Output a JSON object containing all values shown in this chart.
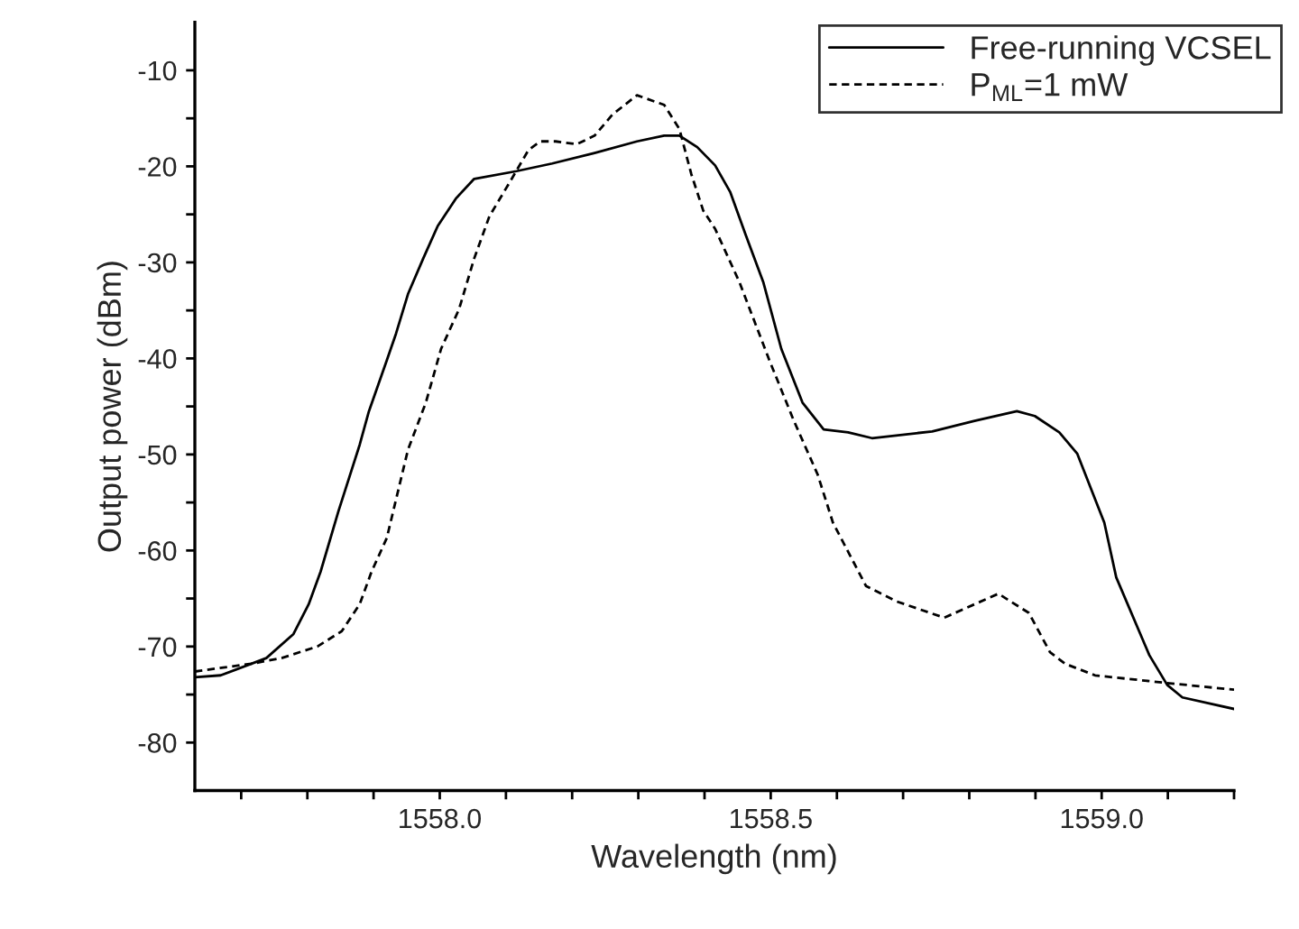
{
  "chart_data": {
    "type": "line",
    "xlabel": "Wavelength (nm)",
    "ylabel": "Output power (dBm)",
    "xlim": [
      1557.63,
      1559.2
    ],
    "ylim": [
      -85,
      -5
    ],
    "xticks": [
      {
        "value": 1557.7,
        "label": null
      },
      {
        "value": 1557.8,
        "label": null
      },
      {
        "value": 1557.9,
        "label": null
      },
      {
        "value": 1558.0,
        "label": "1558.0"
      },
      {
        "value": 1558.1,
        "label": null
      },
      {
        "value": 1558.2,
        "label": null
      },
      {
        "value": 1558.3,
        "label": null
      },
      {
        "value": 1558.4,
        "label": null
      },
      {
        "value": 1558.5,
        "label": "1558.5"
      },
      {
        "value": 1558.6,
        "label": null
      },
      {
        "value": 1558.7,
        "label": null
      },
      {
        "value": 1558.8,
        "label": null
      },
      {
        "value": 1558.9,
        "label": null
      },
      {
        "value": 1559.0,
        "label": "1559.0"
      },
      {
        "value": 1559.1,
        "label": null
      },
      {
        "value": 1559.2,
        "label": null
      }
    ],
    "yticks": [
      -80,
      {
        "value": -75,
        "label": null
      },
      -70,
      {
        "value": -65,
        "label": null
      },
      -60,
      {
        "value": -55,
        "label": null
      },
      -50,
      {
        "value": -45,
        "label": null
      },
      -40,
      {
        "value": -35,
        "label": null
      },
      -30,
      {
        "value": -25,
        "label": null
      },
      -20,
      {
        "value": -15,
        "label": null
      },
      -10
    ],
    "grid": false,
    "legend": "top right",
    "marker": "none",
    "series": [
      {
        "name": "Free-running VCSEL",
        "color": "#000000",
        "line_style": "solid",
        "x": [
          1557.63,
          1557.669,
          1557.738,
          1557.779,
          1557.802,
          1557.82,
          1557.847,
          1557.879,
          1557.893,
          1557.92,
          1557.934,
          1557.952,
          1557.975,
          1557.997,
          1558.025,
          1558.052,
          1558.116,
          1558.17,
          1558.234,
          1558.298,
          1558.339,
          1558.362,
          1558.389,
          1558.416,
          1558.439,
          1558.462,
          1558.489,
          1558.516,
          1558.548,
          1558.58,
          1558.617,
          1558.653,
          1558.744,
          1558.808,
          1558.872,
          1558.899,
          1558.936,
          1558.963,
          1559.004,
          1559.022,
          1559.072,
          1559.099,
          1559.122,
          1559.2
        ],
        "values": [
          -73.2,
          -73.0,
          -71.2,
          -68.7,
          -65.6,
          -62.2,
          -55.9,
          -49.0,
          -45.5,
          -40.2,
          -37.4,
          -33.3,
          -29.6,
          -26.2,
          -23.3,
          -21.3,
          -20.5,
          -19.7,
          -18.6,
          -17.4,
          -16.8,
          -16.8,
          -18.0,
          -19.9,
          -22.7,
          -27.1,
          -32.1,
          -39.0,
          -44.6,
          -47.4,
          -47.7,
          -48.3,
          -47.6,
          -46.5,
          -45.5,
          -46.0,
          -47.7,
          -49.9,
          -57.1,
          -62.8,
          -70.9,
          -74.0,
          -75.3,
          -76.5
        ]
      },
      {
        "name": "P$_{ML}$=1 mW",
        "color": "#000000",
        "line_style": "dashed",
        "x": [
          1557.63,
          1557.715,
          1557.761,
          1557.815,
          1557.852,
          1557.879,
          1557.897,
          1557.92,
          1557.952,
          1557.979,
          1558.002,
          1558.029,
          1558.052,
          1558.075,
          1558.107,
          1558.134,
          1558.152,
          1558.175,
          1558.207,
          1558.234,
          1558.261,
          1558.298,
          1558.339,
          1558.362,
          1558.38,
          1558.398,
          1558.416,
          1558.453,
          1558.498,
          1558.535,
          1558.571,
          1558.594,
          1558.644,
          1558.69,
          1558.762,
          1558.808,
          1558.844,
          1558.89,
          1558.922,
          1558.945,
          1558.99,
          1559.099,
          1559.2
        ],
        "values": [
          -72.6,
          -71.8,
          -71.2,
          -70.0,
          -68.4,
          -65.6,
          -62.2,
          -58.7,
          -49.5,
          -44.6,
          -39.0,
          -34.9,
          -29.6,
          -25.2,
          -21.5,
          -18.3,
          -17.4,
          -17.4,
          -17.7,
          -16.8,
          -14.6,
          -12.6,
          -13.6,
          -16.1,
          -20.8,
          -24.6,
          -26.5,
          -32.1,
          -40.2,
          -46.5,
          -52.1,
          -57.1,
          -63.7,
          -65.3,
          -67.0,
          -65.6,
          -64.5,
          -66.5,
          -70.6,
          -71.8,
          -73.0,
          -73.8,
          -74.5
        ]
      }
    ]
  }
}
